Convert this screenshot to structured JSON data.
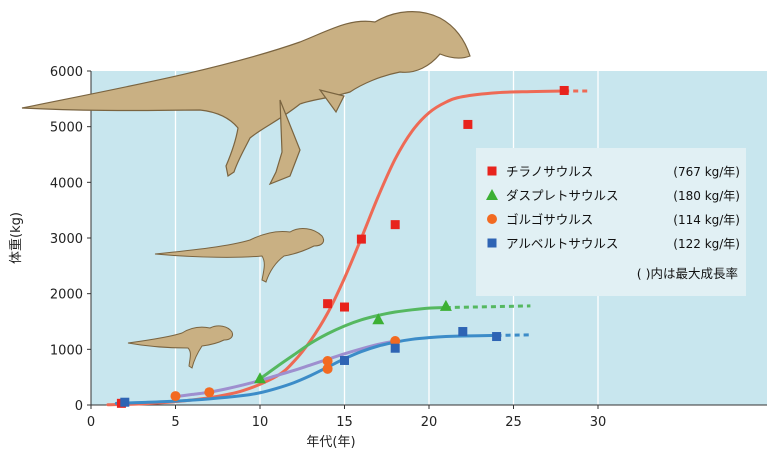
{
  "chart_data": {
    "type": "scatter",
    "xlabel": "年代(年)",
    "ylabel": "体重(kg)",
    "xlim": [
      0,
      40
    ],
    "ylim": [
      0,
      6000
    ],
    "x_ticks": [
      "0",
      "5",
      "10",
      "15",
      "20",
      "25",
      "30"
    ],
    "y_ticks": [
      "0",
      "1000",
      "2000",
      "3000",
      "4000",
      "5000",
      "6000"
    ],
    "grid": true,
    "legend_position": "right",
    "legend_note": "( )内は最大成長率",
    "series": [
      {
        "name": "チラノサウルス",
        "rate": "(767 kg/年)",
        "marker": "square",
        "color": "#e8231d",
        "curve_color": "#ee6a55",
        "points": [
          [
            1.8,
            30
          ],
          [
            14,
            1820
          ],
          [
            15,
            1760
          ],
          [
            16,
            2980
          ],
          [
            18,
            3240
          ],
          [
            22.3,
            5040
          ],
          [
            28,
            5650
          ]
        ],
        "curve": [
          [
            1,
            5
          ],
          [
            3,
            20
          ],
          [
            5,
            60
          ],
          [
            7,
            130
          ],
          [
            9,
            260
          ],
          [
            11,
            520
          ],
          [
            12,
            780
          ],
          [
            13,
            1160
          ],
          [
            14,
            1650
          ],
          [
            15,
            2280
          ],
          [
            16,
            3000
          ],
          [
            17,
            3750
          ],
          [
            18,
            4420
          ],
          [
            19,
            4920
          ],
          [
            20,
            5250
          ],
          [
            21,
            5440
          ],
          [
            22,
            5540
          ],
          [
            24,
            5610
          ],
          [
            26,
            5630
          ],
          [
            28,
            5640
          ]
        ],
        "curve_dash": [
          [
            28,
            5640
          ],
          [
            29.5,
            5640
          ]
        ]
      },
      {
        "name": "ダスプレトサウルス",
        "rate": "(180 kg/年)",
        "marker": "triangle",
        "color": "#3cb034",
        "curve_color": "#55b860",
        "points": [
          [
            10,
            480
          ],
          [
            17,
            1540
          ],
          [
            21,
            1780
          ]
        ],
        "curve": [
          [
            10,
            470
          ],
          [
            11,
            690
          ],
          [
            12,
            900
          ],
          [
            13,
            1110
          ],
          [
            14,
            1280
          ],
          [
            15,
            1420
          ],
          [
            16,
            1530
          ],
          [
            17,
            1610
          ],
          [
            18,
            1670
          ],
          [
            19,
            1710
          ],
          [
            20,
            1740
          ],
          [
            21,
            1750
          ]
        ],
        "curve_dash": [
          [
            21,
            1750
          ],
          [
            26,
            1780
          ]
        ]
      },
      {
        "name": "ゴルゴサウルス",
        "rate": "(114 kg/年)",
        "marker": "circle",
        "color": "#f26a21",
        "curve_color": "#9e8fcf",
        "points": [
          [
            5,
            160
          ],
          [
            7,
            230
          ],
          [
            14,
            650
          ],
          [
            14,
            790
          ],
          [
            18,
            1150
          ]
        ],
        "curve": [
          [
            5,
            150
          ],
          [
            6,
            190
          ],
          [
            7,
            230
          ],
          [
            8,
            290
          ],
          [
            9,
            360
          ],
          [
            10,
            440
          ],
          [
            11,
            530
          ],
          [
            12,
            620
          ],
          [
            13,
            720
          ],
          [
            14,
            820
          ],
          [
            15,
            920
          ],
          [
            16,
            1010
          ],
          [
            17,
            1090
          ],
          [
            18,
            1150
          ]
        ],
        "curve_dash": []
      },
      {
        "name": "アルベルトサウルス",
        "rate": "(122 kg/年)",
        "marker": "square",
        "color": "#2e64b4",
        "curve_color": "#3c8cc8",
        "points": [
          [
            2,
            50
          ],
          [
            15,
            800
          ],
          [
            18,
            1020
          ],
          [
            22,
            1320
          ],
          [
            24,
            1230
          ]
        ],
        "curve": [
          [
            1.5,
            30
          ],
          [
            3,
            45
          ],
          [
            5,
            70
          ],
          [
            7,
            110
          ],
          [
            9,
            170
          ],
          [
            10,
            220
          ],
          [
            11,
            300
          ],
          [
            12,
            400
          ],
          [
            13,
            530
          ],
          [
            14,
            680
          ],
          [
            15,
            830
          ],
          [
            16,
            960
          ],
          [
            17,
            1060
          ],
          [
            18,
            1130
          ],
          [
            19,
            1180
          ],
          [
            20,
            1210
          ],
          [
            21,
            1230
          ],
          [
            22,
            1240
          ],
          [
            24,
            1250
          ]
        ],
        "curve_dash": [
          [
            24,
            1250
          ],
          [
            26,
            1260
          ]
        ]
      }
    ]
  },
  "colors": {
    "plot_background": "#c8e6ee",
    "grid": "#ffffff",
    "legend_background": "#e1f0f4"
  }
}
